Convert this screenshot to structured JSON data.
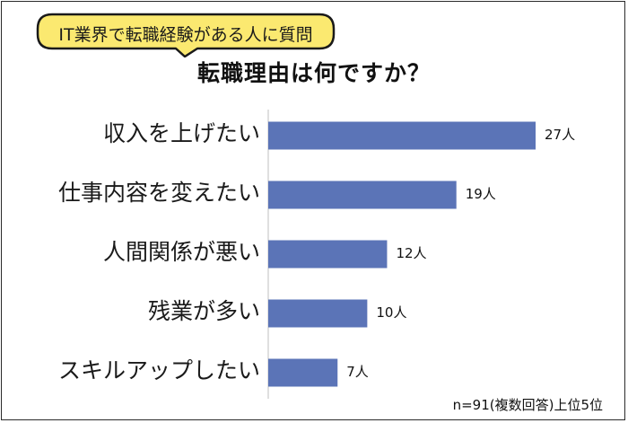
{
  "survey_tag": "IT業界で転職経験がある人に質問",
  "chart_data": {
    "type": "bar",
    "orientation": "horizontal",
    "title": "転職理由は何ですか？",
    "categories": [
      "収入を上げたい",
      "仕事内容を変えたい",
      "人間関係が悪い",
      "残業が多い",
      "スキルアップしたい"
    ],
    "values": [
      27,
      19,
      12,
      10,
      7
    ],
    "data_labels": [
      "27人",
      "19人",
      "12人",
      "10人",
      "7人"
    ],
    "unit": "人",
    "xlim": [
      0,
      27
    ],
    "grid": false,
    "legend": "none",
    "bar_color": "#5b74b7",
    "note": "n=91(複数回答)上位5位"
  },
  "colors": {
    "bubble_fill": "#fbe970",
    "bubble_border": "#1a1a1a",
    "frame_border": "#2b2b2b"
  }
}
